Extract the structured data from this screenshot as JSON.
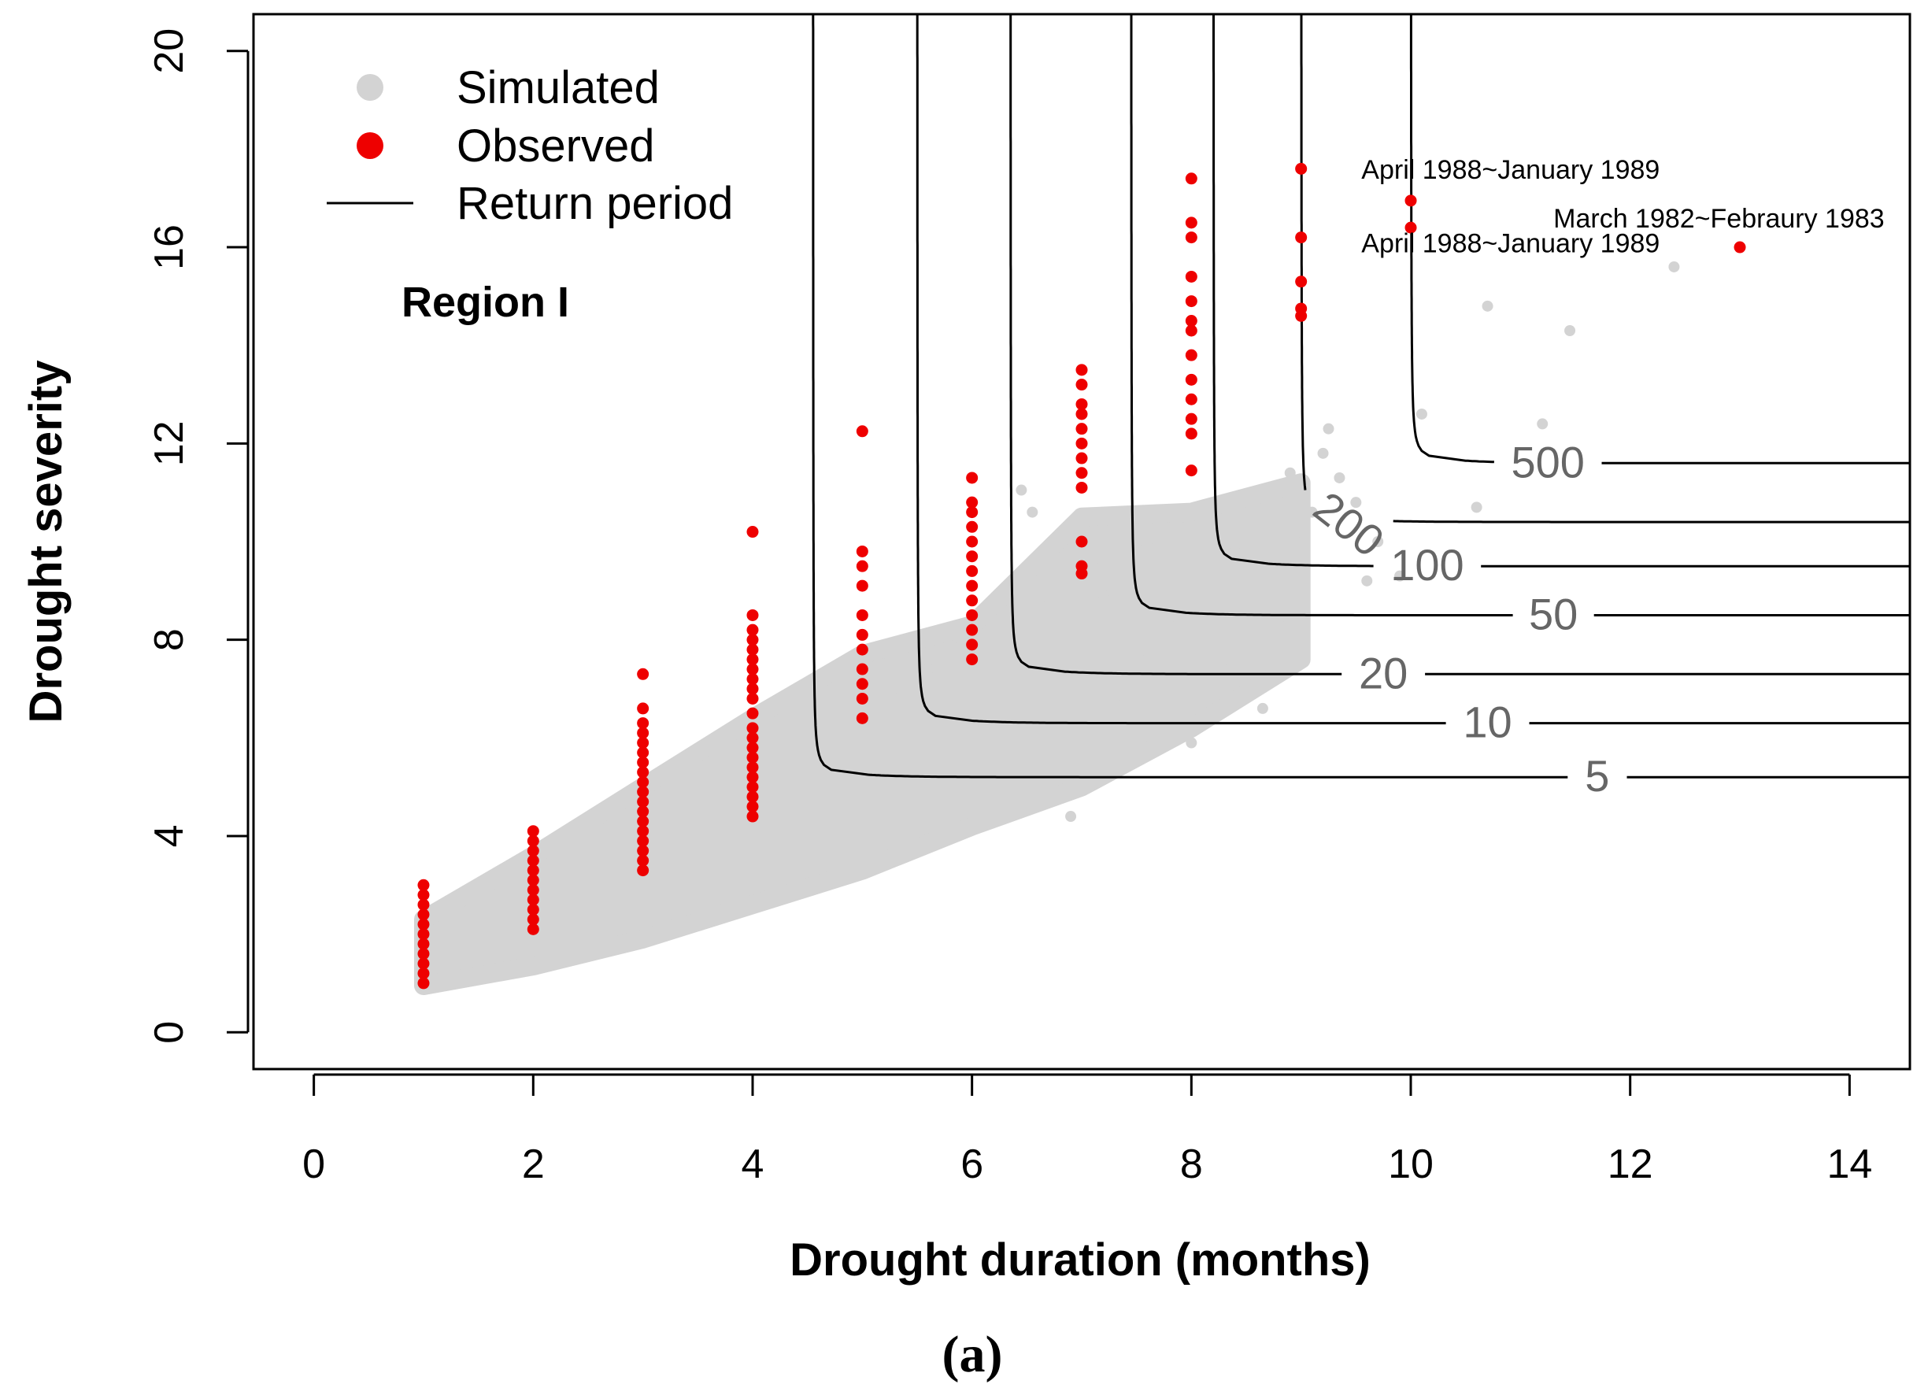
{
  "chart_data": {
    "type": "scatter",
    "xlabel": "Drought duration (months)",
    "ylabel": "Drought severity",
    "xlim": [
      -0.55,
      14.55
    ],
    "ylim": [
      -0.75,
      20.75
    ],
    "xticks": [
      0,
      2,
      4,
      6,
      8,
      10,
      12,
      14
    ],
    "yticks": [
      0,
      4,
      8,
      12,
      16,
      20
    ],
    "region_label": "Region I",
    "panel_label": "(a)",
    "legend": {
      "position": "top-left",
      "entries": [
        {
          "label": "Simulated",
          "symbol": "point",
          "color": "#d3d3d3"
        },
        {
          "label": "Observed",
          "symbol": "point",
          "color": "#ee0000"
        },
        {
          "label": "Return period",
          "symbol": "line",
          "color": "#000000"
        }
      ]
    },
    "colors": {
      "simulated": "#d3d3d3",
      "observed": "#ee0000",
      "curve": "#000000",
      "curve_label": "#666666"
    },
    "simulated_cloud": {
      "description_points": "dense cloud",
      "envelope": [
        [
          1.0,
          0.95
        ],
        [
          2.0,
          1.35
        ],
        [
          3.0,
          1.9
        ],
        [
          4.0,
          2.6
        ],
        [
          5.0,
          3.3
        ],
        [
          6.0,
          4.2
        ],
        [
          7.0,
          5.0
        ],
        [
          8.0,
          6.2
        ],
        [
          9.0,
          7.6
        ],
        [
          9.0,
          11.2
        ],
        [
          8.0,
          10.6
        ],
        [
          7.0,
          10.5
        ],
        [
          6.0,
          8.3
        ],
        [
          5.0,
          7.7
        ],
        [
          4.0,
          6.4
        ],
        [
          3.0,
          5.0
        ],
        [
          2.0,
          3.6
        ],
        [
          1.0,
          2.3
        ]
      ],
      "scattered": [
        [
          5.3,
          6.8
        ],
        [
          5.6,
          7.4
        ],
        [
          5.9,
          7.9
        ],
        [
          6.3,
          8.8
        ],
        [
          6.45,
          11.05
        ],
        [
          6.55,
          10.6
        ],
        [
          6.7,
          8.7
        ],
        [
          6.9,
          4.4
        ],
        [
          7.1,
          9.6
        ],
        [
          7.3,
          6.7
        ],
        [
          7.6,
          9.9
        ],
        [
          7.8,
          8.3
        ],
        [
          8.1,
          7.6
        ],
        [
          8.2,
          8.9
        ],
        [
          8.35,
          7.4
        ],
        [
          8.4,
          9.8
        ],
        [
          8.55,
          7.3
        ],
        [
          8.65,
          6.6
        ],
        [
          8.8,
          8.3
        ],
        [
          8.9,
          11.4
        ],
        [
          9.0,
          10.2
        ],
        [
          9.1,
          10.6
        ],
        [
          9.2,
          11.8
        ],
        [
          9.25,
          12.3
        ],
        [
          9.35,
          11.3
        ],
        [
          9.5,
          10.8
        ],
        [
          9.7,
          10.0
        ],
        [
          9.9,
          9.3
        ],
        [
          10.1,
          12.6
        ],
        [
          10.6,
          10.7
        ],
        [
          10.7,
          14.8
        ],
        [
          11.2,
          12.4
        ],
        [
          11.45,
          14.3
        ],
        [
          12.4,
          15.6
        ],
        [
          7.6,
          7.6
        ],
        [
          8.0,
          5.9
        ],
        [
          8.45,
          8.8
        ],
        [
          9.6,
          9.2
        ],
        [
          6.1,
          6.3
        ],
        [
          7.2,
          8.9
        ]
      ]
    },
    "observed": [
      {
        "x": 1,
        "y": [
          1.0,
          1.2,
          1.4,
          1.6,
          1.8,
          2.0,
          2.2,
          2.4,
          2.6,
          2.8,
          3.0
        ]
      },
      {
        "x": 2,
        "y": [
          2.1,
          2.3,
          2.5,
          2.7,
          2.9,
          3.1,
          3.3,
          3.5,
          3.7,
          3.9,
          4.1
        ]
      },
      {
        "x": 3,
        "y": [
          3.3,
          3.5,
          3.7,
          3.9,
          4.1,
          4.3,
          4.5,
          4.7,
          4.9,
          5.1,
          5.3,
          5.5,
          5.7,
          5.9,
          6.1,
          6.3,
          6.6,
          7.3
        ]
      },
      {
        "x": 4,
        "y": [
          4.4,
          4.6,
          4.8,
          5.0,
          5.2,
          5.4,
          5.6,
          5.8,
          6.0,
          6.2,
          6.5,
          6.8,
          7.0,
          7.2,
          7.4,
          7.6,
          7.8,
          8.0,
          8.2,
          8.5,
          10.2
        ]
      },
      {
        "x": 5,
        "y": [
          6.4,
          6.8,
          7.1,
          7.4,
          7.8,
          8.1,
          8.5,
          9.1,
          9.5,
          9.8,
          12.25
        ]
      },
      {
        "x": 6,
        "y": [
          7.6,
          7.9,
          8.2,
          8.5,
          8.8,
          9.1,
          9.4,
          9.7,
          10.0,
          10.3,
          10.6,
          10.8,
          11.3
        ]
      },
      {
        "x": 7,
        "y": [
          9.35,
          9.5,
          10.0,
          11.1,
          11.4,
          11.7,
          12.0,
          12.3,
          12.6,
          12.8,
          13.2,
          13.5
        ]
      },
      {
        "x": 8,
        "y": [
          11.45,
          12.2,
          12.5,
          12.9,
          13.3,
          13.8,
          14.3,
          14.5,
          14.9,
          15.4,
          16.2,
          16.5,
          17.4
        ]
      },
      {
        "x": 9,
        "y": [
          14.6,
          14.75,
          15.3,
          16.2,
          17.6
        ]
      },
      {
        "x": 10,
        "y": [
          16.4,
          16.95
        ]
      },
      {
        "x": 13,
        "y": [
          16.0
        ]
      }
    ],
    "return_periods": [
      {
        "label": "5",
        "level": 5.2,
        "dmin": 4.55,
        "label_x": 11.7
      },
      {
        "label": "10",
        "level": 6.3,
        "dmin": 5.5,
        "label_x": 10.7
      },
      {
        "label": "20",
        "level": 7.3,
        "dmin": 6.35,
        "label_x": 9.75
      },
      {
        "label": "50",
        "level": 8.5,
        "dmin": 7.45,
        "label_x": 11.3
      },
      {
        "label": "100",
        "level": 9.5,
        "dmin": 8.2,
        "label_x": 10.15
      },
      {
        "label": "200",
        "level": 10.4,
        "dmin": 9.0,
        "label_x": 9.35
      },
      {
        "label": "500",
        "level": 11.6,
        "dmin": 10.0,
        "label_x": 11.25
      }
    ],
    "annotations": [
      {
        "text": "April 1988~January 1989",
        "x": 9.55,
        "y": 17.4
      },
      {
        "text": "April 1988~January 1989",
        "x": 9.55,
        "y": 15.9
      },
      {
        "text": "March 1982~Febraury 1983",
        "x": 11.3,
        "y": 16.4
      }
    ]
  }
}
